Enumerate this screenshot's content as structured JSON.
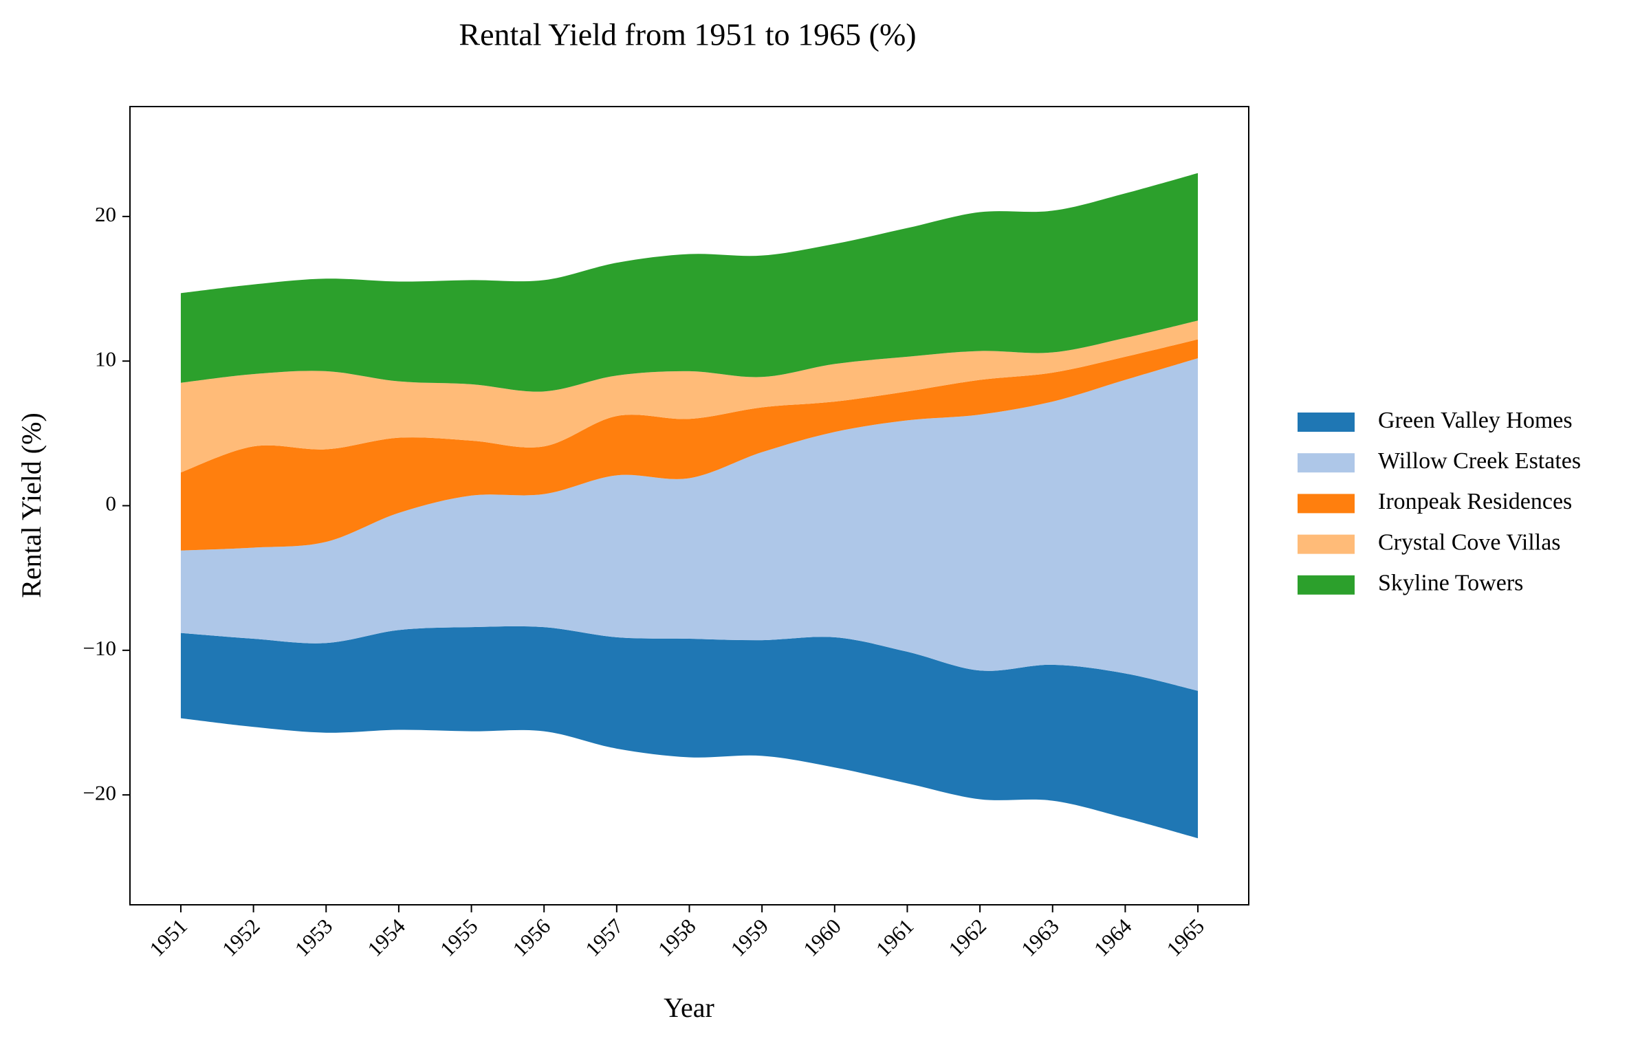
{
  "chart_data": {
    "type": "streamgraph",
    "title": "Rental Yield from 1951 to 1965 (%)",
    "x_label": "Year",
    "y_label": "Rental Yield (%)",
    "categories": [
      "1951",
      "1952",
      "1953",
      "1954",
      "1955",
      "1956",
      "1957",
      "1958",
      "1959",
      "1960",
      "1961",
      "1962",
      "1963",
      "1964",
      "1965"
    ],
    "series": [
      {
        "name": "Green Valley Homes",
        "color": "#1f77b4",
        "values": [
          5.9,
          6.1,
          6.2,
          6.9,
          7.2,
          7.2,
          7.7,
          8.2,
          8.0,
          9.0,
          9.1,
          8.9,
          9.4,
          10.0,
          10.2
        ]
      },
      {
        "name": "Willow Creek Estates",
        "color": "#aec7e8",
        "values": [
          5.7,
          6.3,
          7.0,
          8.1,
          9.1,
          9.2,
          11.2,
          11.1,
          13.0,
          14.2,
          16.0,
          17.7,
          18.2,
          20.3,
          23.0
        ]
      },
      {
        "name": "Ironpeak Residences",
        "color": "#ff7f0e",
        "values": [
          5.4,
          7.0,
          6.4,
          5.2,
          3.8,
          3.3,
          4.1,
          4.1,
          3.1,
          2.1,
          2.0,
          2.4,
          2.0,
          1.6,
          1.3
        ]
      },
      {
        "name": "Crystal Cove Villas",
        "color": "#ffbb78",
        "values": [
          6.2,
          5.0,
          5.4,
          3.9,
          3.9,
          3.8,
          2.8,
          3.3,
          2.1,
          2.6,
          2.4,
          2.0,
          1.4,
          1.3,
          1.3
        ]
      },
      {
        "name": "Skyline Towers",
        "color": "#2ca02c",
        "values": [
          6.2,
          6.2,
          6.4,
          6.9,
          7.2,
          7.7,
          7.8,
          8.1,
          8.4,
          8.3,
          8.9,
          9.6,
          9.8,
          10.0,
          10.2
        ]
      }
    ],
    "ylim": [
      -27.6,
      27.6
    ],
    "yticks": [
      {
        "value": -20,
        "label": "−20"
      },
      {
        "value": -10,
        "label": "−10"
      },
      0,
      10,
      20
    ]
  }
}
